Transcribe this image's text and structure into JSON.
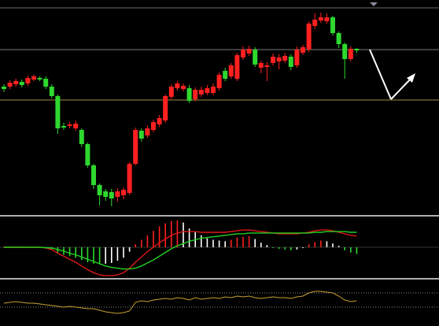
{
  "chart_data": [
    {
      "type": "candlestick",
      "open": [
        163,
        163,
        166,
        169,
        167,
        172,
        174,
        173,
        163,
        151,
        113,
        113,
        110,
        108,
        90,
        63,
        38,
        30,
        29,
        23,
        25,
        28,
        65,
        107,
        101,
        108,
        115,
        120,
        150,
        161,
        160,
        161,
        147,
        153,
        155,
        155,
        161,
        183,
        176,
        173,
        200,
        205,
        210,
        187,
        188,
        193,
        195,
        196,
        201,
        190,
        206,
        210,
        240,
        247,
        246,
        251,
        231,
        217,
        198,
        211
      ],
      "high": [
        166,
        171,
        173,
        172,
        177,
        178,
        176,
        176,
        166,
        153,
        117,
        118,
        120,
        110,
        92,
        65,
        40,
        33,
        33,
        34,
        35,
        67,
        111,
        110,
        114,
        121,
        127,
        153,
        166,
        170,
        167,
        165,
        162,
        163,
        165,
        167,
        181,
        187,
        193,
        206,
        214,
        215,
        213,
        196,
        194,
        205,
        204,
        206,
        204,
        214,
        216,
        246,
        256,
        257,
        256,
        253,
        233,
        219,
        214,
        212
      ],
      "low": [
        156,
        160,
        163,
        162,
        164,
        170,
        170,
        160,
        148,
        103,
        108,
        110,
        107,
        86,
        60,
        33,
        12,
        18,
        11,
        17,
        20,
        25,
        63,
        93,
        98,
        105,
        112,
        117,
        147,
        158,
        157,
        142,
        144,
        150,
        152,
        152,
        158,
        170,
        173,
        170,
        197,
        202,
        188,
        180,
        170,
        190,
        185,
        193,
        184,
        187,
        203,
        207,
        236,
        244,
        243,
        228,
        212,
        173,
        195,
        206
      ],
      "close": [
        160,
        168,
        170,
        165,
        174,
        176,
        172,
        163,
        151,
        110,
        111,
        115,
        116,
        90,
        63,
        38,
        25,
        23,
        21,
        30,
        32,
        65,
        108,
        97,
        110,
        118,
        123,
        151,
        163,
        167,
        164,
        145,
        159,
        159,
        161,
        163,
        178,
        173,
        190,
        203,
        210,
        211,
        191,
        193,
        190,
        201,
        200,
        202,
        188,
        210,
        213,
        243,
        248,
        251,
        251,
        231,
        217,
        198,
        211,
        209
      ],
      "up_color": "#ff2020",
      "down_color": "#2ed82e",
      "ylim": [
        0,
        273
      ],
      "hlines": [
        {
          "value": 210,
          "color": "#7a7a7a"
        },
        {
          "value": 146,
          "color": "#9a8a40"
        }
      ]
    },
    {
      "type": "macd",
      "histogram": [
        1,
        1,
        1,
        1,
        0.5,
        0.5,
        0,
        -1,
        -3,
        -7,
        -10,
        -12,
        -14,
        -17,
        -20,
        -22,
        -23,
        -22,
        -21,
        -18,
        -14,
        -6,
        4,
        10,
        16,
        22,
        28,
        32,
        35,
        36,
        33,
        25,
        20,
        16,
        12,
        10,
        9,
        8,
        10,
        13,
        14,
        15,
        11,
        6,
        3,
        -1,
        -2,
        -3,
        -4,
        -3,
        -1,
        4,
        7,
        9,
        8,
        5,
        2,
        -4,
        -7,
        -9
      ],
      "hist_colors": {
        "up_rising": "#ff2020",
        "up_falling": "#ffffff",
        "down_falling": "#2ed82e",
        "down_rising": "#ffffff"
      },
      "series": [
        {
          "color": "#e01818",
          "values": [
            0,
            0,
            0,
            0,
            0,
            0,
            0,
            -1,
            -3,
            -8,
            -12,
            -16,
            -20,
            -25,
            -30,
            -34,
            -37,
            -38,
            -38,
            -37,
            -34,
            -28,
            -20,
            -13,
            -6,
            0,
            6,
            11,
            16,
            19,
            21,
            21,
            21,
            20,
            20,
            20,
            20,
            20,
            21,
            22,
            23,
            23,
            22,
            21,
            20,
            19,
            18,
            18,
            18,
            18,
            19,
            20,
            22,
            23,
            23,
            22,
            20,
            18,
            16,
            15
          ]
        },
        {
          "color": "#22d022",
          "values": [
            0,
            0,
            0,
            0,
            0,
            0,
            0,
            -0.5,
            -1,
            -3,
            -5,
            -8,
            -10,
            -13,
            -16,
            -19,
            -22,
            -25,
            -27,
            -28,
            -29,
            -29,
            -28,
            -25,
            -21,
            -17,
            -12,
            -7,
            -2,
            2,
            5,
            8,
            10,
            12,
            13,
            14,
            15,
            16,
            17,
            18,
            18,
            19,
            19,
            19,
            19,
            19,
            19,
            19,
            19,
            19,
            19,
            19,
            20,
            20,
            21,
            21,
            21,
            21,
            20,
            20
          ]
        }
      ],
      "ylim": [
        -40,
        40
      ]
    },
    {
      "type": "line",
      "series": [
        {
          "color": "#c8a030",
          "values": [
            29,
            30,
            31,
            30,
            29,
            29,
            28,
            27,
            26,
            25,
            24,
            25,
            24,
            23,
            22,
            22,
            20,
            18,
            17,
            16,
            17,
            19,
            30,
            32,
            31,
            33,
            34,
            35,
            34,
            36,
            35,
            33,
            36,
            34,
            35,
            36,
            35,
            37,
            36,
            38,
            37,
            38,
            36,
            35,
            36,
            37,
            36,
            36,
            35,
            37,
            38,
            42,
            44,
            44,
            43,
            42,
            38,
            33,
            31,
            32
          ]
        }
      ],
      "ylim": [
        0,
        59
      ],
      "hlines": [
        42,
        24
      ]
    }
  ]
}
